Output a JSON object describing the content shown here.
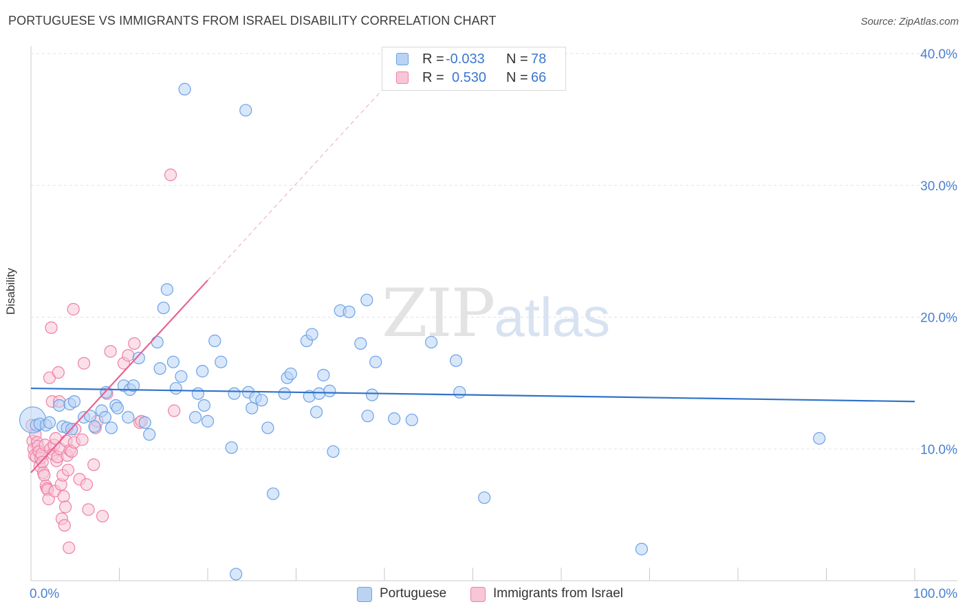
{
  "header": {
    "title": "PORTUGUESE VS IMMIGRANTS FROM ISRAEL DISABILITY CORRELATION CHART",
    "source": "Source: ZipAtlas.com"
  },
  "watermark": {
    "zip": "ZIP",
    "atlas": "atlas"
  },
  "stats": [
    {
      "r_label": "R =",
      "r_value": "-0.033",
      "n_label": "N =",
      "n_value": "78",
      "color": "#6aa2e6",
      "fill": "#bad3f5"
    },
    {
      "r_label": "R =",
      "r_value": "0.530",
      "n_label": "N =",
      "n_value": "66",
      "color": "#ee7fa4",
      "fill": "#f8c6d7"
    }
  ],
  "legend": [
    {
      "label": "Portuguese",
      "color": "#6aa2e6",
      "fill": "#bad3f5"
    },
    {
      "label": "Immigrants from Israel",
      "color": "#ee7fa4",
      "fill": "#f8c6d7"
    }
  ],
  "colors": {
    "blue_line": "#2f72c9",
    "pink_line": "#e9628f",
    "axis_text": "#4a80d0",
    "grid": "#e2e2e2"
  },
  "chart_data": {
    "type": "scatter",
    "title": "PORTUGUESE VS IMMIGRANTS FROM ISRAEL DISABILITY CORRELATION CHART",
    "xlabel": "",
    "ylabel": "Disability",
    "xlim": [
      0,
      100
    ],
    "ylim": [
      0,
      40
    ],
    "x_tick_labels": [
      {
        "value": 0,
        "label": "0.0%"
      },
      {
        "value": 100,
        "label": "100.0%"
      }
    ],
    "y_tick_labels": [
      {
        "value": 10,
        "label": "10.0%"
      },
      {
        "value": 20,
        "label": "20.0%"
      },
      {
        "value": 30,
        "label": "30.0%"
      },
      {
        "value": 40,
        "label": "40.0%"
      }
    ],
    "series": [
      {
        "name": "Portuguese",
        "color": "#6aa2e6",
        "fill": "#bad3f5",
        "points": [
          [
            0.2,
            12.2
          ],
          [
            0.6,
            11.8
          ],
          [
            1.0,
            11.9
          ],
          [
            1.7,
            11.8
          ],
          [
            2.1,
            12.0
          ],
          [
            3.2,
            13.3
          ],
          [
            3.6,
            11.7
          ],
          [
            4.1,
            11.6
          ],
          [
            4.4,
            13.4
          ],
          [
            4.6,
            11.5
          ],
          [
            4.9,
            13.6
          ],
          [
            6.0,
            12.4
          ],
          [
            6.7,
            12.5
          ],
          [
            7.2,
            11.7
          ],
          [
            8.0,
            12.9
          ],
          [
            8.4,
            12.4
          ],
          [
            8.5,
            14.3
          ],
          [
            9.1,
            11.6
          ],
          [
            9.6,
            13.3
          ],
          [
            9.8,
            13.1
          ],
          [
            10.5,
            14.8
          ],
          [
            11.0,
            12.4
          ],
          [
            11.2,
            14.5
          ],
          [
            11.6,
            14.8
          ],
          [
            12.2,
            16.9
          ],
          [
            12.9,
            12.0
          ],
          [
            13.4,
            11.1
          ],
          [
            14.3,
            18.1
          ],
          [
            14.6,
            16.1
          ],
          [
            15.0,
            20.7
          ],
          [
            15.4,
            22.1
          ],
          [
            16.1,
            16.6
          ],
          [
            16.4,
            14.6
          ],
          [
            17.0,
            15.5
          ],
          [
            17.4,
            37.3
          ],
          [
            18.6,
            12.4
          ],
          [
            18.9,
            14.2
          ],
          [
            19.4,
            15.9
          ],
          [
            19.6,
            13.3
          ],
          [
            20.0,
            12.1
          ],
          [
            20.8,
            18.2
          ],
          [
            21.5,
            16.6
          ],
          [
            22.7,
            10.1
          ],
          [
            23.0,
            14.2
          ],
          [
            23.2,
            0.5
          ],
          [
            24.3,
            35.7
          ],
          [
            24.6,
            14.3
          ],
          [
            25.0,
            13.1
          ],
          [
            25.4,
            13.9
          ],
          [
            26.1,
            13.7
          ],
          [
            26.8,
            11.6
          ],
          [
            27.4,
            6.6
          ],
          [
            28.7,
            14.2
          ],
          [
            29.0,
            15.4
          ],
          [
            29.4,
            15.7
          ],
          [
            31.2,
            18.2
          ],
          [
            31.5,
            14.0
          ],
          [
            31.8,
            18.7
          ],
          [
            32.3,
            12.8
          ],
          [
            32.6,
            14.2
          ],
          [
            33.1,
            15.6
          ],
          [
            33.8,
            14.4
          ],
          [
            34.2,
            9.8
          ],
          [
            35.0,
            20.5
          ],
          [
            36.0,
            20.4
          ],
          [
            37.3,
            18.0
          ],
          [
            38.0,
            21.3
          ],
          [
            38.1,
            12.5
          ],
          [
            38.6,
            14.1
          ],
          [
            39.0,
            16.6
          ],
          [
            41.1,
            12.3
          ],
          [
            43.1,
            12.2
          ],
          [
            45.3,
            18.1
          ],
          [
            48.1,
            16.7
          ],
          [
            48.5,
            14.3
          ],
          [
            51.3,
            6.3
          ],
          [
            69.1,
            2.4
          ],
          [
            89.2,
            10.8
          ]
        ],
        "trend": {
          "x": [
            0,
            100
          ],
          "y": [
            14.6,
            13.6
          ]
        }
      },
      {
        "name": "Immigrants from Israel",
        "color": "#ee7fa4",
        "fill": "#f8c6d7",
        "points": [
          [
            0.1,
            11.8
          ],
          [
            0.2,
            10.6
          ],
          [
            0.3,
            10.0
          ],
          [
            0.4,
            9.5
          ],
          [
            0.5,
            11.1
          ],
          [
            0.6,
            9.4
          ],
          [
            0.7,
            10.5
          ],
          [
            0.8,
            10.2
          ],
          [
            0.9,
            9.8
          ],
          [
            1.0,
            8.7
          ],
          [
            1.1,
            9.3
          ],
          [
            1.2,
            9.6
          ],
          [
            1.3,
            9.0
          ],
          [
            1.4,
            8.2
          ],
          [
            1.5,
            8.0
          ],
          [
            1.6,
            10.3
          ],
          [
            1.7,
            7.2
          ],
          [
            1.8,
            7.0
          ],
          [
            1.9,
            6.9
          ],
          [
            2.0,
            6.2
          ],
          [
            2.1,
            15.4
          ],
          [
            2.2,
            10.0
          ],
          [
            2.3,
            19.2
          ],
          [
            2.4,
            13.6
          ],
          [
            2.5,
            9.6
          ],
          [
            2.6,
            10.3
          ],
          [
            2.7,
            6.8
          ],
          [
            2.8,
            10.8
          ],
          [
            2.9,
            9.1
          ],
          [
            3.0,
            9.4
          ],
          [
            3.1,
            15.8
          ],
          [
            3.2,
            13.6
          ],
          [
            3.3,
            10.0
          ],
          [
            3.4,
            7.3
          ],
          [
            3.5,
            4.7
          ],
          [
            3.6,
            8.0
          ],
          [
            3.7,
            6.4
          ],
          [
            3.8,
            4.2
          ],
          [
            3.9,
            5.6
          ],
          [
            4.0,
            10.6
          ],
          [
            4.1,
            9.5
          ],
          [
            4.2,
            8.4
          ],
          [
            4.3,
            2.5
          ],
          [
            4.4,
            9.9
          ],
          [
            4.6,
            9.8
          ],
          [
            4.8,
            20.6
          ],
          [
            4.9,
            10.5
          ],
          [
            5.0,
            11.5
          ],
          [
            5.5,
            7.7
          ],
          [
            5.8,
            10.7
          ],
          [
            6.0,
            16.5
          ],
          [
            6.3,
            7.3
          ],
          [
            6.5,
            5.4
          ],
          [
            7.1,
            8.8
          ],
          [
            7.3,
            11.6
          ],
          [
            7.5,
            12.1
          ],
          [
            8.1,
            4.9
          ],
          [
            8.6,
            14.2
          ],
          [
            9.0,
            17.4
          ],
          [
            10.5,
            16.5
          ],
          [
            11.0,
            17.1
          ],
          [
            11.7,
            18.0
          ],
          [
            12.3,
            12.0
          ],
          [
            12.5,
            12.1
          ],
          [
            15.8,
            30.8
          ],
          [
            16.2,
            12.9
          ]
        ],
        "trend": {
          "x": [
            0,
            20
          ],
          "y": [
            8.2,
            22.8
          ]
        },
        "trend_extension": {
          "x": [
            20,
            40.5
          ],
          "y": [
            22.8,
            37.8
          ]
        }
      }
    ],
    "grid": true,
    "legend_position": "bottom-center",
    "stats_box_position": "top-center"
  }
}
